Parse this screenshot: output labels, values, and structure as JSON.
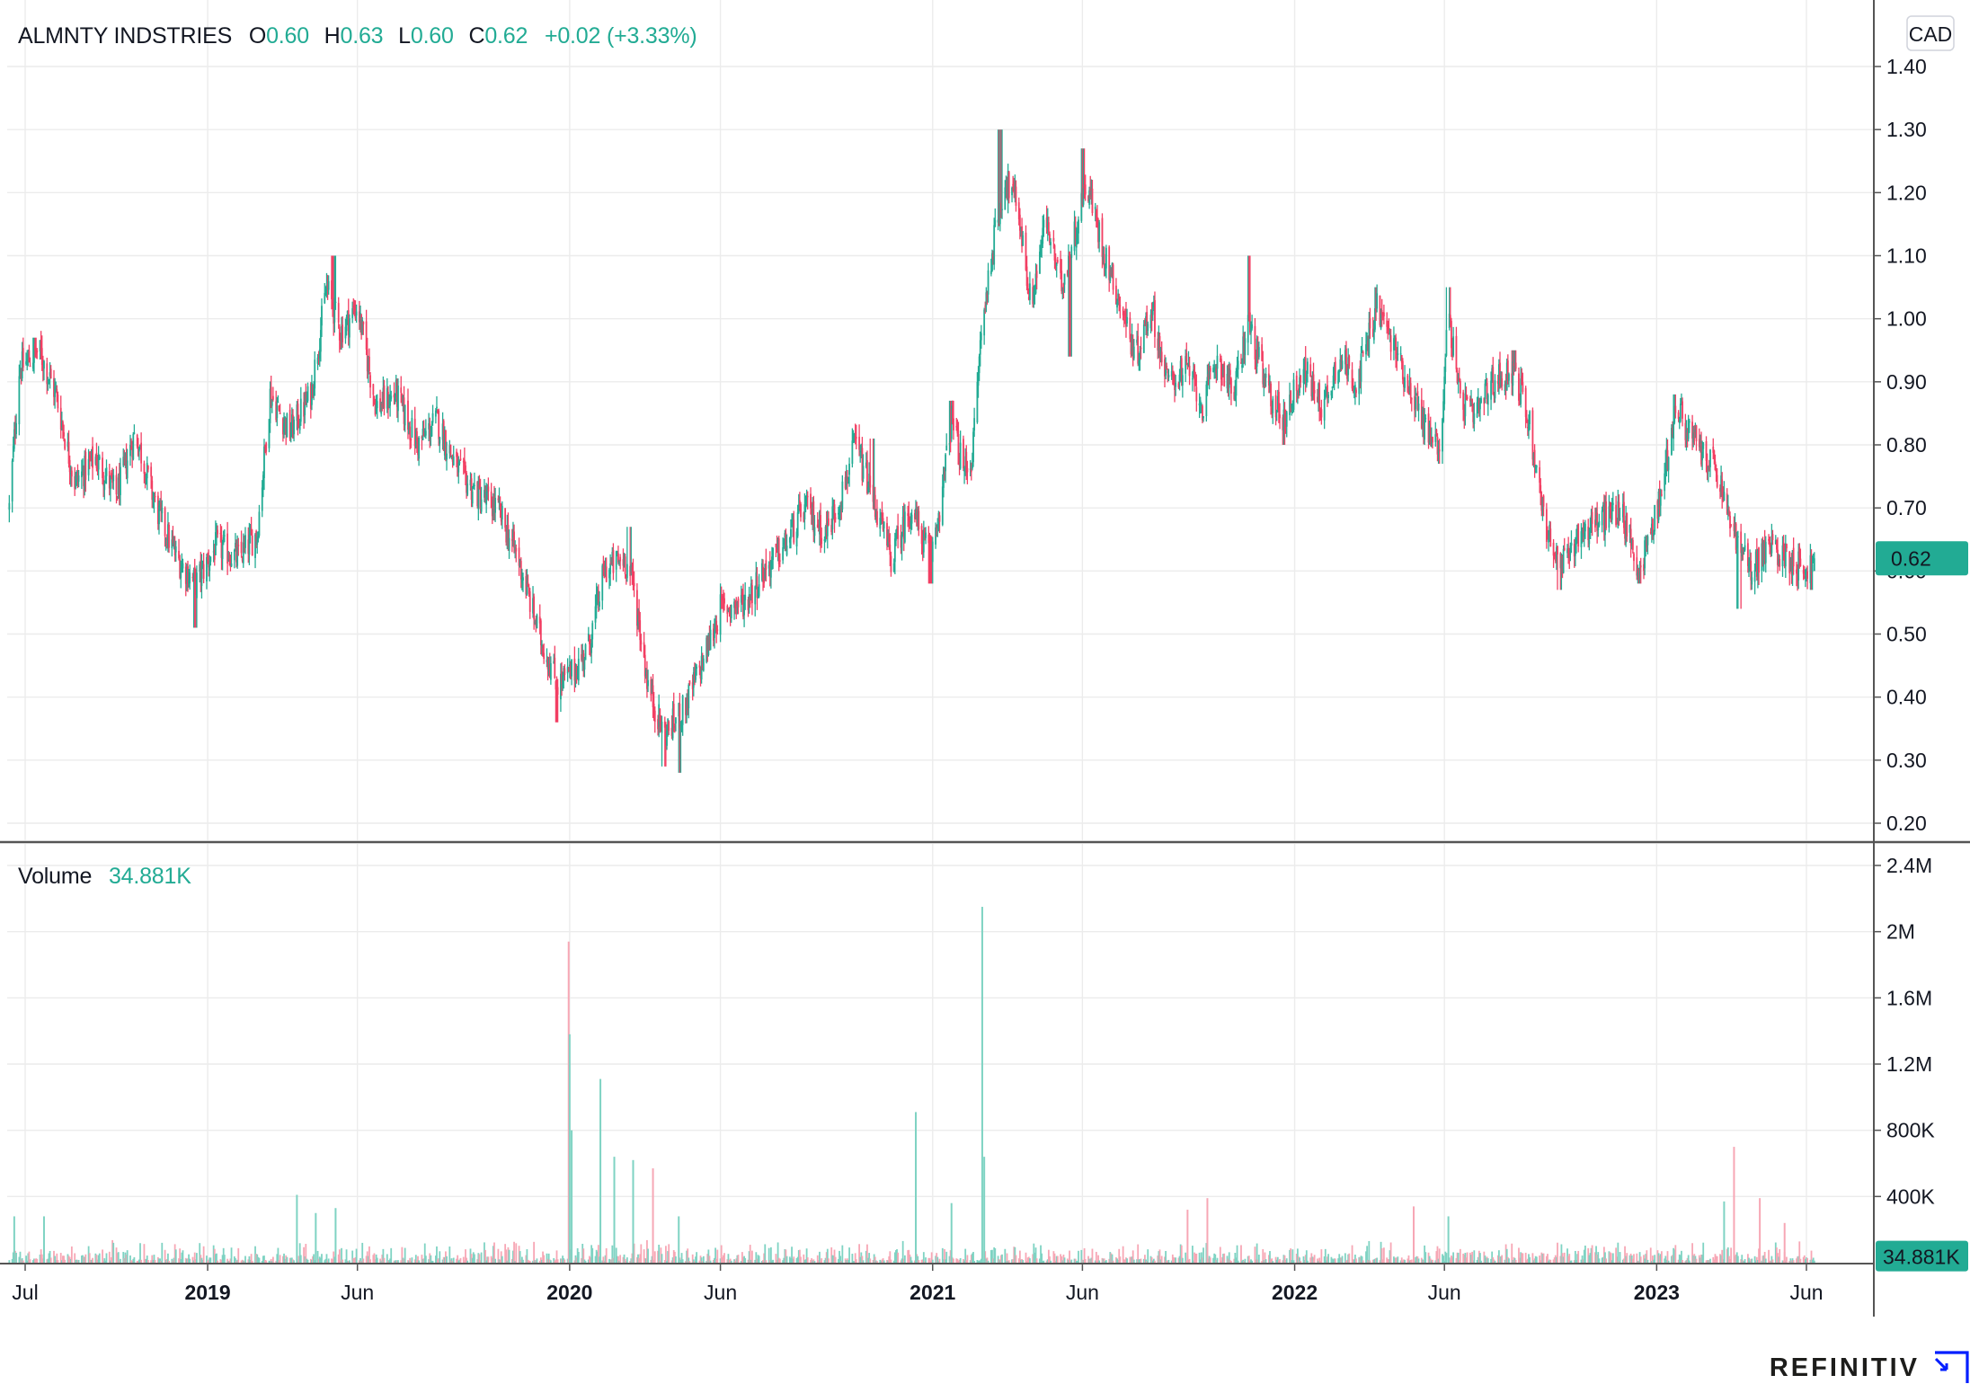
{
  "instrument": {
    "name": "ALMNTY INDSTRIES",
    "o_prefix": "O",
    "open": "0.60",
    "h_prefix": "H",
    "high": "0.63",
    "l_prefix": "L",
    "low": "0.60",
    "c_prefix": "C",
    "close": "0.62",
    "change": "+0.02 (+3.33%)",
    "currency": "CAD",
    "last_price_label": "0.62",
    "last_price": 0.62
  },
  "volume_legend": {
    "label": "Volume",
    "value": "34.881K",
    "badge": "34.881K"
  },
  "brand": {
    "name": "REFINITIV"
  },
  "colors": {
    "up": "#22ab94",
    "down": "#f23f63",
    "up_volume": "#7fd3c3",
    "down_volume": "#f7a7b5",
    "grid": "#ececec",
    "axis": "#131722",
    "badge_bg": "#22ab94"
  },
  "chart_data": [
    {
      "type": "candlestick",
      "title": "ALMNTY INDSTRIES",
      "ylabel": "",
      "ylim": [
        0.17,
        1.47
      ],
      "y_ticks": [
        "1.40",
        "1.30",
        "1.20",
        "1.10",
        "1.00",
        "0.90",
        "0.80",
        "0.70",
        "0.60",
        "0.50",
        "0.40",
        "0.30",
        "0.20"
      ],
      "y_tick_values": [
        1.4,
        1.3,
        1.2,
        1.1,
        1.0,
        0.9,
        0.8,
        0.7,
        0.6,
        0.5,
        0.4,
        0.3,
        0.2
      ],
      "x_range": [
        "2018-06-15",
        "2023-06-30"
      ],
      "x_ticks": [
        {
          "label": "Jul",
          "date": "2018-07-01",
          "year": false
        },
        {
          "label": "2019",
          "date": "2019-01-01",
          "year": true
        },
        {
          "label": "Jun",
          "date": "2019-06-01",
          "year": false
        },
        {
          "label": "2020",
          "date": "2020-01-01",
          "year": true
        },
        {
          "label": "Jun",
          "date": "2020-06-01",
          "year": false
        },
        {
          "label": "2021",
          "date": "2021-01-01",
          "year": true
        },
        {
          "label": "Jun",
          "date": "2021-06-01",
          "year": false
        },
        {
          "label": "2022",
          "date": "2022-01-01",
          "year": true
        },
        {
          "label": "Jun",
          "date": "2022-06-01",
          "year": false
        },
        {
          "label": "2023",
          "date": "2023-01-01",
          "year": true
        },
        {
          "label": "Jun",
          "date": "2023-06-01",
          "year": false
        }
      ],
      "grid": true,
      "price_path": [
        [
          "2018-06-15",
          0.7
        ],
        [
          "2018-06-25",
          0.92
        ],
        [
          "2018-07-15",
          0.95
        ],
        [
          "2018-08-01",
          0.88
        ],
        [
          "2018-08-20",
          0.74
        ],
        [
          "2018-09-10",
          0.78
        ],
        [
          "2018-10-01",
          0.72
        ],
        [
          "2018-10-20",
          0.82
        ],
        [
          "2018-11-10",
          0.7
        ],
        [
          "2018-12-01",
          0.62
        ],
        [
          "2018-12-20",
          0.58
        ],
        [
          "2019-01-10",
          0.64
        ],
        [
          "2019-02-01",
          0.62
        ],
        [
          "2019-02-20",
          0.66
        ],
        [
          "2019-03-05",
          0.88
        ],
        [
          "2019-03-25",
          0.82
        ],
        [
          "2019-04-15",
          0.88
        ],
        [
          "2019-05-01",
          1.05
        ],
        [
          "2019-05-15",
          0.98
        ],
        [
          "2019-06-01",
          1.02
        ],
        [
          "2019-06-20",
          0.86
        ],
        [
          "2019-07-10",
          0.88
        ],
        [
          "2019-08-01",
          0.8
        ],
        [
          "2019-08-20",
          0.84
        ],
        [
          "2019-09-10",
          0.76
        ],
        [
          "2019-10-01",
          0.72
        ],
        [
          "2019-10-20",
          0.7
        ],
        [
          "2019-11-10",
          0.62
        ],
        [
          "2019-12-01",
          0.5
        ],
        [
          "2019-12-20",
          0.42
        ],
        [
          "2020-01-05",
          0.44
        ],
        [
          "2020-01-20",
          0.48
        ],
        [
          "2020-02-05",
          0.6
        ],
        [
          "2020-02-25",
          0.62
        ],
        [
          "2020-03-05",
          0.58
        ],
        [
          "2020-03-20",
          0.42
        ],
        [
          "2020-04-05",
          0.34
        ],
        [
          "2020-04-25",
          0.38
        ],
        [
          "2020-05-15",
          0.46
        ],
        [
          "2020-06-01",
          0.54
        ],
        [
          "2020-06-25",
          0.55
        ],
        [
          "2020-07-15",
          0.6
        ],
        [
          "2020-08-05",
          0.64
        ],
        [
          "2020-08-25",
          0.7
        ],
        [
          "2020-09-15",
          0.66
        ],
        [
          "2020-10-01",
          0.72
        ],
        [
          "2020-10-15",
          0.8
        ],
        [
          "2020-11-01",
          0.72
        ],
        [
          "2020-11-20",
          0.62
        ],
        [
          "2020-12-10",
          0.7
        ],
        [
          "2020-12-30",
          0.62
        ],
        [
          "2021-01-10",
          0.72
        ],
        [
          "2021-01-20",
          0.84
        ],
        [
          "2021-02-01",
          0.76
        ],
        [
          "2021-02-10",
          0.78
        ],
        [
          "2021-02-18",
          0.96
        ],
        [
          "2021-03-01",
          1.1
        ],
        [
          "2021-03-15",
          1.22
        ],
        [
          "2021-03-28",
          1.18
        ],
        [
          "2021-04-10",
          1.02
        ],
        [
          "2021-04-25",
          1.16
        ],
        [
          "2021-05-10",
          1.05
        ],
        [
          "2021-05-25",
          1.14
        ],
        [
          "2021-06-05",
          1.22
        ],
        [
          "2021-06-20",
          1.12
        ],
        [
          "2021-07-10",
          1.02
        ],
        [
          "2021-07-25",
          0.94
        ],
        [
          "2021-08-10",
          1.02
        ],
        [
          "2021-08-25",
          0.9
        ],
        [
          "2021-09-15",
          0.92
        ],
        [
          "2021-10-01",
          0.86
        ],
        [
          "2021-10-15",
          0.94
        ],
        [
          "2021-11-01",
          0.88
        ],
        [
          "2021-11-15",
          1.0
        ],
        [
          "2021-12-01",
          0.9
        ],
        [
          "2021-12-20",
          0.84
        ],
        [
          "2022-01-10",
          0.92
        ],
        [
          "2022-01-30",
          0.86
        ],
        [
          "2022-02-15",
          0.94
        ],
        [
          "2022-03-05",
          0.9
        ],
        [
          "2022-03-25",
          1.02
        ],
        [
          "2022-04-10",
          0.96
        ],
        [
          "2022-04-25",
          0.9
        ],
        [
          "2022-05-15",
          0.82
        ],
        [
          "2022-05-28",
          0.8
        ],
        [
          "2022-06-05",
          1.02
        ],
        [
          "2022-06-15",
          0.88
        ],
        [
          "2022-07-01",
          0.84
        ],
        [
          "2022-07-20",
          0.9
        ],
        [
          "2022-08-10",
          0.92
        ],
        [
          "2022-08-25",
          0.84
        ],
        [
          "2022-09-10",
          0.68
        ],
        [
          "2022-09-25",
          0.6
        ],
        [
          "2022-10-15",
          0.66
        ],
        [
          "2022-11-05",
          0.68
        ],
        [
          "2022-11-25",
          0.7
        ],
        [
          "2022-12-15",
          0.6
        ],
        [
          "2023-01-05",
          0.72
        ],
        [
          "2023-01-20",
          0.86
        ],
        [
          "2023-02-10",
          0.8
        ],
        [
          "2023-03-01",
          0.76
        ],
        [
          "2023-03-20",
          0.66
        ],
        [
          "2023-04-05",
          0.6
        ],
        [
          "2023-04-25",
          0.64
        ],
        [
          "2023-05-15",
          0.62
        ],
        [
          "2023-06-01",
          0.6
        ],
        [
          "2023-06-10",
          0.62
        ]
      ],
      "notable_highs": [
        [
          "2018-07-10",
          0.97
        ],
        [
          "2019-05-08",
          1.1
        ],
        [
          "2020-03-01",
          0.67
        ],
        [
          "2020-11-01",
          0.81
        ],
        [
          "2021-01-20",
          0.87
        ],
        [
          "2021-03-10",
          1.3
        ],
        [
          "2021-06-01",
          1.27
        ],
        [
          "2021-11-15",
          1.1
        ],
        [
          "2022-03-25",
          1.05
        ],
        [
          "2022-06-05",
          1.05
        ],
        [
          "2022-08-10",
          0.95
        ],
        [
          "2023-01-20",
          0.88
        ]
      ],
      "notable_lows": [
        [
          "2018-12-20",
          0.51
        ],
        [
          "2019-12-20",
          0.36
        ],
        [
          "2020-04-05",
          0.29
        ],
        [
          "2020-04-20",
          0.28
        ],
        [
          "2020-12-30",
          0.58
        ],
        [
          "2021-05-20",
          0.94
        ],
        [
          "2021-12-20",
          0.8
        ],
        [
          "2022-05-28",
          0.77
        ],
        [
          "2022-09-25",
          0.57
        ],
        [
          "2022-12-15",
          0.58
        ],
        [
          "2023-03-25",
          0.54
        ],
        [
          "2023-06-05",
          0.57
        ]
      ]
    },
    {
      "type": "bar",
      "title": "Volume",
      "ylabel": "",
      "ylim": [
        0,
        2.52
      ],
      "y_unit": "M",
      "y_ticks": [
        "2.4M",
        "2M",
        "1.6M",
        "1.2M",
        "800K",
        "400K"
      ],
      "y_tick_values": [
        2.4,
        2.0,
        1.6,
        1.2,
        0.8,
        0.4
      ],
      "last_value": 0.0349,
      "spikes": [
        {
          "date": "2018-06-20",
          "value": 0.28,
          "dir": "up"
        },
        {
          "date": "2018-07-20",
          "value": 0.28,
          "dir": "up"
        },
        {
          "date": "2019-04-01",
          "value": 0.41,
          "dir": "up"
        },
        {
          "date": "2019-04-20",
          "value": 0.3,
          "dir": "up"
        },
        {
          "date": "2019-05-10",
          "value": 0.33,
          "dir": "up"
        },
        {
          "date": "2019-12-31",
          "value": 1.94,
          "dir": "down"
        },
        {
          "date": "2020-01-01",
          "value": 1.38,
          "dir": "up"
        },
        {
          "date": "2020-01-03",
          "value": 0.8,
          "dir": "up"
        },
        {
          "date": "2020-02-01",
          "value": 1.11,
          "dir": "up"
        },
        {
          "date": "2020-02-15",
          "value": 0.64,
          "dir": "up"
        },
        {
          "date": "2020-03-05",
          "value": 0.62,
          "dir": "up"
        },
        {
          "date": "2020-03-25",
          "value": 0.57,
          "dir": "down"
        },
        {
          "date": "2020-04-20",
          "value": 0.28,
          "dir": "up"
        },
        {
          "date": "2020-12-15",
          "value": 0.91,
          "dir": "up"
        },
        {
          "date": "2021-01-20",
          "value": 0.36,
          "dir": "up"
        },
        {
          "date": "2021-02-20",
          "value": 2.15,
          "dir": "up"
        },
        {
          "date": "2021-02-22",
          "value": 0.64,
          "dir": "up"
        },
        {
          "date": "2021-09-15",
          "value": 0.32,
          "dir": "down"
        },
        {
          "date": "2021-10-05",
          "value": 0.39,
          "dir": "down"
        },
        {
          "date": "2022-05-01",
          "value": 0.34,
          "dir": "down"
        },
        {
          "date": "2022-06-05",
          "value": 0.28,
          "dir": "up"
        },
        {
          "date": "2023-03-10",
          "value": 0.37,
          "dir": "up"
        },
        {
          "date": "2023-03-20",
          "value": 0.7,
          "dir": "down"
        },
        {
          "date": "2023-04-15",
          "value": 0.39,
          "dir": "down"
        },
        {
          "date": "2023-05-10",
          "value": 0.24,
          "dir": "down"
        }
      ],
      "baseline_typical": 0.05
    }
  ]
}
